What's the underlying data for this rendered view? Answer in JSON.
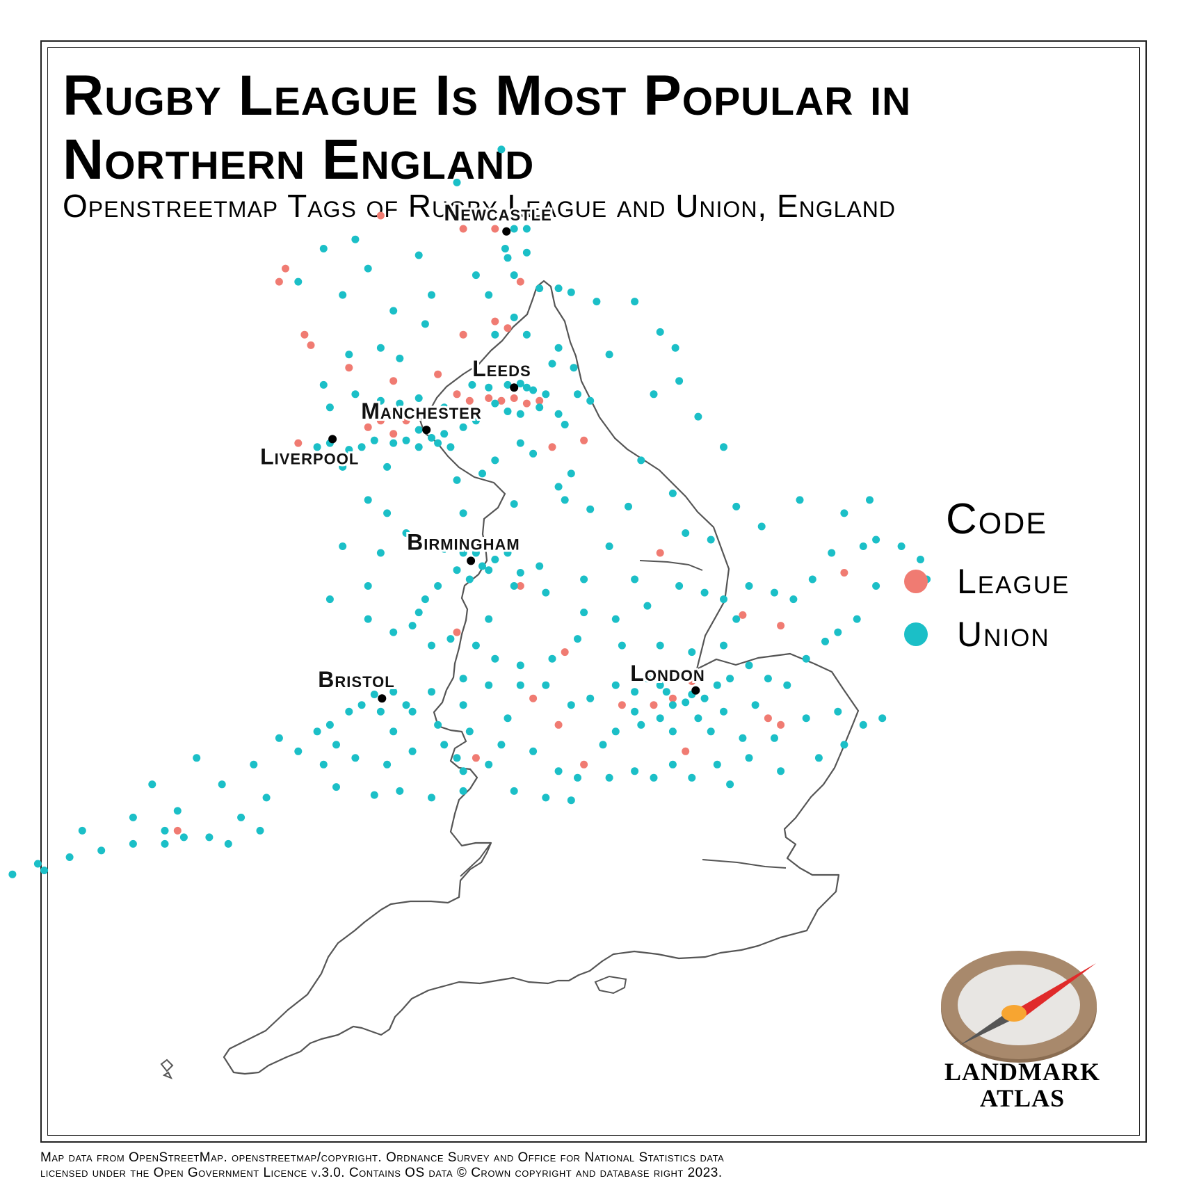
{
  "title": "Rugby League Is Most Popular in Northern England",
  "subtitle": "Openstreetmap Tags of Rugby League and Union, England",
  "legend": {
    "title": "Code",
    "items": [
      {
        "label": "League",
        "color": "#f07b72"
      },
      {
        "label": "Union",
        "color": "#1bbfc7"
      }
    ]
  },
  "cities": [
    {
      "name": "Newcastle",
      "lon": -1.61,
      "lat": 54.98
    },
    {
      "name": "Leeds",
      "lon": -1.55,
      "lat": 53.8
    },
    {
      "name": "Manchester",
      "lon": -2.24,
      "lat": 53.48
    },
    {
      "name": "Liverpool",
      "lon": -2.98,
      "lat": 53.41
    },
    {
      "name": "Birmingham",
      "lon": -1.89,
      "lat": 52.49
    },
    {
      "name": "Bristol",
      "lon": -2.59,
      "lat": 51.45
    },
    {
      "name": "London",
      "lon": -0.12,
      "lat": 51.51
    }
  ],
  "map": {
    "region": "England",
    "land_color": "#ffffff",
    "coast_color": "#555555",
    "city_marker_color": "#000000",
    "league_points": [
      [
        -1.95,
        55.0
      ],
      [
        -1.7,
        55.0
      ],
      [
        -2.6,
        55.1
      ],
      [
        -3.35,
        54.7
      ],
      [
        -3.4,
        54.6
      ],
      [
        -3.2,
        54.2
      ],
      [
        -3.15,
        54.12
      ],
      [
        -2.85,
        53.95
      ],
      [
        -2.5,
        53.85
      ],
      [
        -2.15,
        53.9
      ],
      [
        -2.0,
        53.75
      ],
      [
        -1.9,
        53.7
      ],
      [
        -1.75,
        53.72
      ],
      [
        -1.65,
        53.7
      ],
      [
        -1.55,
        53.72
      ],
      [
        -1.45,
        53.68
      ],
      [
        -1.35,
        53.7
      ],
      [
        -2.2,
        53.62
      ],
      [
        -2.5,
        53.6
      ],
      [
        -2.6,
        53.55
      ],
      [
        -2.7,
        53.5
      ],
      [
        -2.4,
        53.55
      ],
      [
        -2.5,
        53.45
      ],
      [
        -1.0,
        53.4
      ],
      [
        -1.25,
        53.35
      ],
      [
        -1.95,
        54.2
      ],
      [
        -1.7,
        54.3
      ],
      [
        -1.5,
        54.6
      ],
      [
        -1.6,
        54.25
      ],
      [
        -3.25,
        53.38
      ],
      [
        -0.4,
        52.55
      ],
      [
        0.25,
        52.08
      ],
      [
        1.05,
        52.4
      ],
      [
        0.55,
        52.0
      ],
      [
        -1.5,
        52.3
      ],
      [
        -2.0,
        51.95
      ],
      [
        -1.15,
        51.8
      ],
      [
        -0.7,
        51.4
      ],
      [
        -1.2,
        51.25
      ],
      [
        -1.4,
        51.45
      ],
      [
        -0.2,
        51.05
      ],
      [
        0.45,
        51.3
      ],
      [
        0.55,
        51.25
      ],
      [
        -0.45,
        51.4
      ],
      [
        -0.15,
        51.58
      ],
      [
        -1.0,
        50.95
      ],
      [
        -4.2,
        50.45
      ],
      [
        -1.85,
        51.0
      ],
      [
        -0.3,
        51.45
      ]
    ],
    "union_points": [
      [
        -1.65,
        55.6
      ],
      [
        -2.0,
        55.35
      ],
      [
        -1.78,
        55.1
      ],
      [
        -1.55,
        55.0
      ],
      [
        -1.45,
        55.0
      ],
      [
        -1.62,
        54.85
      ],
      [
        -1.6,
        54.78
      ],
      [
        -1.45,
        54.82
      ],
      [
        -1.55,
        54.65
      ],
      [
        -2.8,
        54.92
      ],
      [
        -3.05,
        54.85
      ],
      [
        -3.25,
        54.6
      ],
      [
        -2.3,
        54.8
      ],
      [
        -2.7,
        54.7
      ],
      [
        -2.9,
        54.5
      ],
      [
        -2.2,
        54.5
      ],
      [
        -2.5,
        54.38
      ],
      [
        -1.35,
        54.55
      ],
      [
        -1.2,
        54.55
      ],
      [
        -1.1,
        54.52
      ],
      [
        -0.9,
        54.45
      ],
      [
        -0.6,
        54.45
      ],
      [
        -1.85,
        54.65
      ],
      [
        -1.75,
        54.5
      ],
      [
        -1.55,
        54.33
      ],
      [
        -1.7,
        54.2
      ],
      [
        -1.45,
        54.2
      ],
      [
        -1.2,
        54.1
      ],
      [
        -0.8,
        54.05
      ],
      [
        -0.4,
        54.22
      ],
      [
        -0.28,
        54.1
      ],
      [
        -0.25,
        53.85
      ],
      [
        -0.45,
        53.75
      ],
      [
        -1.08,
        53.95
      ],
      [
        -1.25,
        53.98
      ],
      [
        -2.25,
        54.28
      ],
      [
        -2.6,
        54.1
      ],
      [
        -2.85,
        54.05
      ],
      [
        -3.05,
        53.82
      ],
      [
        -3.0,
        53.65
      ],
      [
        -2.45,
        54.02
      ],
      [
        -2.8,
        53.75
      ],
      [
        -2.6,
        53.7
      ],
      [
        -2.45,
        53.68
      ],
      [
        -2.3,
        53.72
      ],
      [
        -2.1,
        53.65
      ],
      [
        -1.88,
        53.82
      ],
      [
        -1.75,
        53.8
      ],
      [
        -1.6,
        53.82
      ],
      [
        -1.5,
        53.83
      ],
      [
        -1.45,
        53.8
      ],
      [
        -1.4,
        53.78
      ],
      [
        -1.3,
        53.75
      ],
      [
        -1.35,
        53.65
      ],
      [
        -1.5,
        53.6
      ],
      [
        -1.6,
        53.62
      ],
      [
        -1.7,
        53.68
      ],
      [
        -1.2,
        53.6
      ],
      [
        -1.15,
        53.52
      ],
      [
        -1.05,
        53.75
      ],
      [
        -0.95,
        53.7
      ],
      [
        -1.85,
        53.55
      ],
      [
        -1.95,
        53.5
      ],
      [
        -2.1,
        53.45
      ],
      [
        -2.2,
        53.42
      ],
      [
        -2.3,
        53.48
      ],
      [
        -2.4,
        53.4
      ],
      [
        -2.3,
        53.35
      ],
      [
        -2.15,
        53.38
      ],
      [
        -2.05,
        53.35
      ],
      [
        -2.5,
        53.38
      ],
      [
        -2.65,
        53.4
      ],
      [
        -2.75,
        53.35
      ],
      [
        -2.85,
        53.33
      ],
      [
        -3.0,
        53.38
      ],
      [
        -3.1,
        53.35
      ],
      [
        -2.9,
        53.2
      ],
      [
        -2.55,
        53.2
      ],
      [
        -1.5,
        53.38
      ],
      [
        -1.4,
        53.3
      ],
      [
        -1.1,
        53.15
      ],
      [
        -1.2,
        53.05
      ],
      [
        -0.55,
        53.25
      ],
      [
        -0.1,
        53.58
      ],
      [
        0.1,
        53.35
      ],
      [
        -1.7,
        53.25
      ],
      [
        -1.95,
        52.85
      ],
      [
        -1.55,
        52.92
      ],
      [
        -1.15,
        52.95
      ],
      [
        -0.95,
        52.88
      ],
      [
        -0.65,
        52.9
      ],
      [
        -0.3,
        53.0
      ],
      [
        -2.7,
        52.95
      ],
      [
        -2.4,
        52.7
      ],
      [
        -2.25,
        52.6
      ],
      [
        -2.1,
        52.58
      ],
      [
        -1.95,
        52.55
      ],
      [
        -1.85,
        52.55
      ],
      [
        -1.8,
        52.45
      ],
      [
        -1.75,
        52.42
      ],
      [
        -1.7,
        52.5
      ],
      [
        -1.6,
        52.55
      ],
      [
        -1.5,
        52.4
      ],
      [
        -1.35,
        52.45
      ],
      [
        -1.55,
        52.3
      ],
      [
        -1.9,
        52.35
      ],
      [
        -2.0,
        52.42
      ],
      [
        -2.15,
        52.3
      ],
      [
        -2.25,
        52.2
      ],
      [
        -2.7,
        52.3
      ],
      [
        -2.7,
        52.05
      ],
      [
        -2.5,
        51.95
      ],
      [
        -2.2,
        51.85
      ],
      [
        -2.05,
        51.9
      ],
      [
        -1.85,
        51.85
      ],
      [
        -1.7,
        51.75
      ],
      [
        -1.5,
        51.7
      ],
      [
        -1.25,
        51.75
      ],
      [
        -1.05,
        51.9
      ],
      [
        -0.75,
        52.05
      ],
      [
        -0.5,
        52.15
      ],
      [
        -0.25,
        52.3
      ],
      [
        -0.05,
        52.25
      ],
      [
        0.1,
        52.2
      ],
      [
        0.2,
        52.05
      ],
      [
        0.3,
        52.3
      ],
      [
        0.5,
        52.25
      ],
      [
        0.65,
        52.2
      ],
      [
        0.8,
        52.35
      ],
      [
        0.95,
        52.55
      ],
      [
        1.2,
        52.6
      ],
      [
        1.3,
        52.65
      ],
      [
        1.5,
        52.6
      ],
      [
        1.65,
        52.5
      ],
      [
        1.7,
        52.35
      ],
      [
        1.3,
        52.3
      ],
      [
        1.15,
        52.05
      ],
      [
        1.0,
        51.95
      ],
      [
        0.9,
        51.88
      ],
      [
        0.75,
        51.75
      ],
      [
        0.6,
        51.55
      ],
      [
        0.45,
        51.6
      ],
      [
        0.3,
        51.7
      ],
      [
        0.15,
        51.6
      ],
      [
        0.05,
        51.55
      ],
      [
        -0.05,
        51.45
      ],
      [
        -0.15,
        51.48
      ],
      [
        -0.2,
        51.42
      ],
      [
        -0.3,
        51.4
      ],
      [
        -0.35,
        51.5
      ],
      [
        -0.4,
        51.55
      ],
      [
        -0.5,
        51.6
      ],
      [
        -0.6,
        51.5
      ],
      [
        -0.75,
        51.55
      ],
      [
        -0.95,
        51.45
      ],
      [
        -1.1,
        51.4
      ],
      [
        -1.3,
        51.55
      ],
      [
        -1.5,
        51.55
      ],
      [
        -1.75,
        51.55
      ],
      [
        -1.95,
        51.6
      ],
      [
        -2.2,
        51.5
      ],
      [
        -2.4,
        51.4
      ],
      [
        -2.5,
        51.5
      ],
      [
        -2.65,
        51.48
      ],
      [
        -2.75,
        51.4
      ],
      [
        -2.85,
        51.35
      ],
      [
        -2.6,
        51.35
      ],
      [
        -2.35,
        51.35
      ],
      [
        -2.15,
        51.25
      ],
      [
        -1.9,
        51.2
      ],
      [
        -1.65,
        51.1
      ],
      [
        -1.4,
        51.05
      ],
      [
        -1.2,
        50.9
      ],
      [
        -1.05,
        50.85
      ],
      [
        -0.8,
        50.85
      ],
      [
        -0.45,
        50.85
      ],
      [
        -0.15,
        50.85
      ],
      [
        0.15,
        50.8
      ],
      [
        0.55,
        50.9
      ],
      [
        0.85,
        51.0
      ],
      [
        1.05,
        51.1
      ],
      [
        1.2,
        51.25
      ],
      [
        1.35,
        51.3
      ],
      [
        1.0,
        51.35
      ],
      [
        0.75,
        51.3
      ],
      [
        0.5,
        51.15
      ],
      [
        0.25,
        51.15
      ],
      [
        0.0,
        51.2
      ],
      [
        -0.3,
        51.2
      ],
      [
        -0.55,
        51.25
      ],
      [
        -0.75,
        51.2
      ],
      [
        -0.85,
        51.1
      ],
      [
        -1.95,
        50.75
      ],
      [
        -2.2,
        50.7
      ],
      [
        -2.45,
        50.75
      ],
      [
        -2.65,
        50.72
      ],
      [
        -2.95,
        50.78
      ],
      [
        -3.05,
        50.95
      ],
      [
        -3.25,
        51.05
      ],
      [
        -3.5,
        50.7
      ],
      [
        -3.7,
        50.55
      ],
      [
        -3.55,
        50.45
      ],
      [
        -3.95,
        50.4
      ],
      [
        -4.15,
        50.4
      ],
      [
        -4.3,
        50.45
      ],
      [
        -4.55,
        50.35
      ],
      [
        -4.8,
        50.3
      ],
      [
        -5.05,
        50.25
      ],
      [
        -5.25,
        50.15
      ],
      [
        -5.5,
        50.12
      ],
      [
        -5.65,
        50.1
      ],
      [
        -5.3,
        50.2
      ],
      [
        -4.95,
        50.45
      ],
      [
        -4.55,
        50.55
      ],
      [
        -4.4,
        50.8
      ],
      [
        -4.05,
        51.0
      ],
      [
        -3.85,
        50.8
      ],
      [
        -3.6,
        50.95
      ],
      [
        -3.4,
        51.15
      ],
      [
        -3.1,
        51.2
      ],
      [
        -2.95,
        51.1
      ],
      [
        -2.8,
        51.0
      ],
      [
        -2.55,
        50.95
      ],
      [
        -2.35,
        51.05
      ],
      [
        -2.1,
        51.1
      ],
      [
        -1.95,
        50.9
      ],
      [
        -1.75,
        50.95
      ],
      [
        -1.55,
        50.75
      ],
      [
        -1.3,
        50.7
      ],
      [
        -1.1,
        50.68
      ],
      [
        -0.6,
        50.9
      ],
      [
        -0.3,
        50.95
      ],
      [
        0.05,
        50.95
      ],
      [
        0.3,
        51.0
      ],
      [
        -1.0,
        52.1
      ],
      [
        -1.3,
        52.25
      ],
      [
        -1.75,
        52.05
      ],
      [
        -2.35,
        52.0
      ],
      [
        -3.0,
        52.2
      ],
      [
        -2.9,
        52.6
      ],
      [
        -2.55,
        52.85
      ],
      [
        -2.0,
        53.1
      ],
      [
        -1.8,
        53.15
      ],
      [
        -0.8,
        52.6
      ],
      [
        -0.6,
        52.35
      ],
      [
        0.0,
        52.65
      ],
      [
        0.4,
        52.75
      ],
      [
        0.7,
        52.95
      ],
      [
        1.05,
        52.85
      ],
      [
        1.25,
        52.95
      ],
      [
        0.2,
        52.9
      ],
      [
        -0.2,
        52.7
      ],
      [
        -1.0,
        52.35
      ],
      [
        -2.6,
        52.55
      ],
      [
        -2.3,
        52.1
      ],
      [
        -1.95,
        51.4
      ],
      [
        -0.15,
        51.8
      ],
      [
        -0.4,
        51.85
      ],
      [
        -0.7,
        51.85
      ],
      [
        0.1,
        51.85
      ],
      [
        0.35,
        51.4
      ],
      [
        0.1,
        51.35
      ],
      [
        -0.1,
        51.3
      ],
      [
        -0.4,
        51.3
      ],
      [
        -0.6,
        51.35
      ],
      [
        -1.6,
        51.3
      ],
      [
        -2.0,
        51.0
      ],
      [
        -2.5,
        51.2
      ],
      [
        -3.0,
        51.25
      ],
      [
        -4.3,
        50.35
      ],
      [
        -4.2,
        50.6
      ],
      [
        -3.8,
        50.35
      ]
    ]
  },
  "credits": {
    "line1": "Map data from OpenStreetMap. openstreetmap/copyright. Ordnance Survey and Office for National Statistics data",
    "line2": "licensed under the Open Government Licence v.3.0. Contains OS data © Crown copyright and database right 2023."
  },
  "logo": {
    "line1": "LANDMARK",
    "line2": "ATLAS",
    "colors": {
      "rim": "#a8896c",
      "face": "#e8e6e3",
      "needle_red": "#e02a2a",
      "needle_dark": "#555555",
      "pivot": "#f7a531"
    }
  }
}
